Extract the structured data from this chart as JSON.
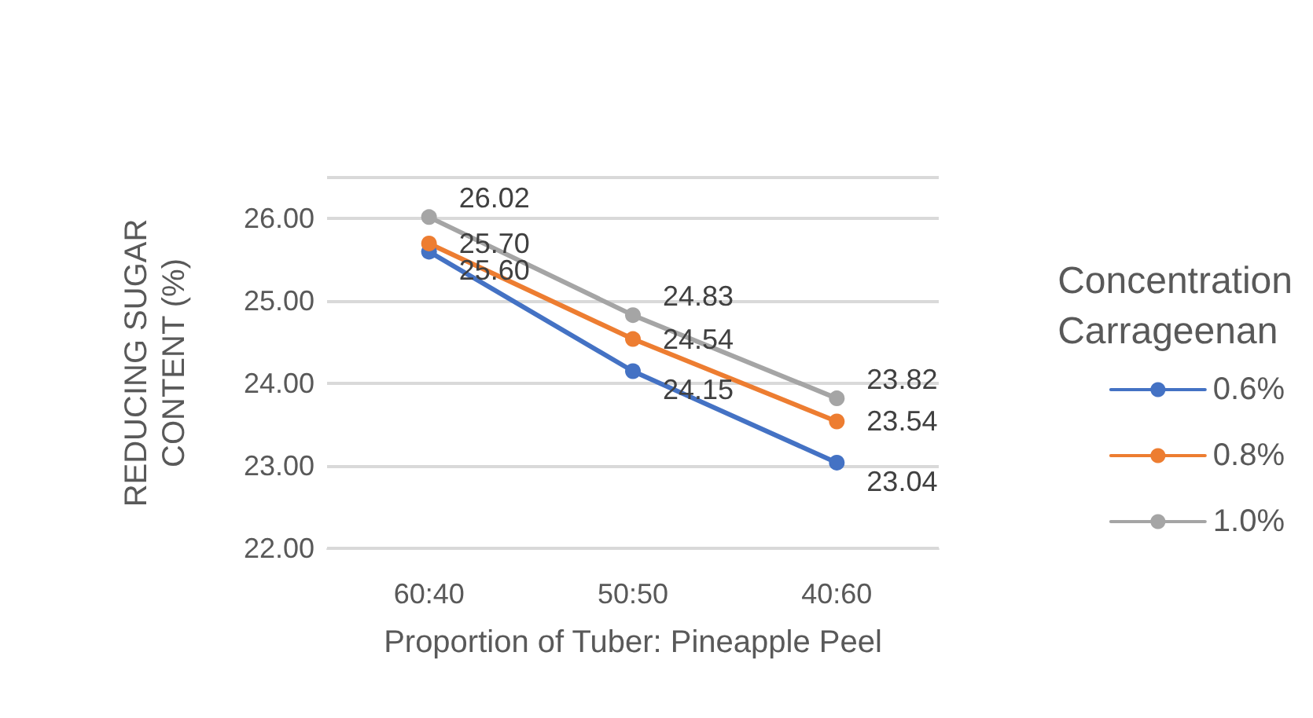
{
  "chart_data": {
    "type": "line",
    "categories": [
      "60:40",
      "50:50",
      "40:60"
    ],
    "series": [
      {
        "name": "0.6%",
        "color": "#4472c4",
        "values": [
          25.6,
          24.15,
          23.04
        ],
        "value_labels": [
          "25.60",
          "24.15",
          "23.04"
        ]
      },
      {
        "name": "0.8%",
        "color": "#ed7d31",
        "values": [
          25.7,
          24.54,
          23.54
        ],
        "value_labels": [
          "25.70",
          "24.54",
          "23.54"
        ]
      },
      {
        "name": "1.0%",
        "color": "#a5a5a5",
        "values": [
          26.02,
          24.83,
          23.82
        ],
        "value_labels": [
          "26.02",
          "24.83",
          "23.82"
        ]
      }
    ],
    "xlabel": "Proportion of Tuber: Pineapple Peel",
    "ylabel": "REDUCING SUGAR\nCONTENT (%)",
    "legend_title": "Concentration\nCarrageenan",
    "ylim": [
      22,
      26.5
    ],
    "yticks": [
      {
        "value": 22,
        "label": "22.00"
      },
      {
        "value": 23,
        "label": "23.00"
      },
      {
        "value": 24,
        "label": "24.00"
      },
      {
        "value": 25,
        "label": "25.00"
      },
      {
        "value": 26,
        "label": "26.00"
      },
      {
        "value": 26.5,
        "label": null
      }
    ],
    "grid": "y",
    "legend": "right",
    "marker": "circle",
    "line_style": "solid"
  }
}
